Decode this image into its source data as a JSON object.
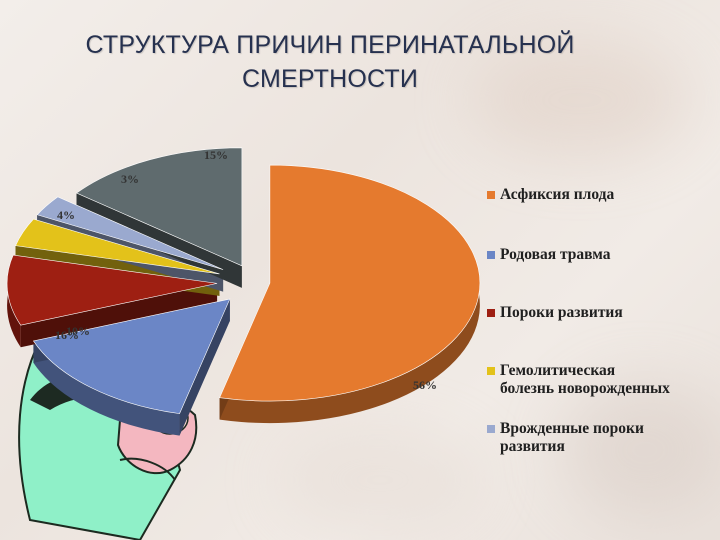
{
  "page": {
    "title": "СТРУКТУРА ПРИЧИН ПЕРИНАТАЛЬНОЙ СМЕРТНОСТИ"
  },
  "chart_data": {
    "type": "pie",
    "title": "СТРУКТУРА ПРИЧИН ПЕРИНАТАЛЬНОЙ СМЕРТНОСТИ",
    "legend_position": "right",
    "unit": "%",
    "labels": [
      "56%",
      "16%",
      "10%",
      "4%",
      "3%",
      "15%"
    ],
    "series": [
      {
        "name": "Асфиксия плода",
        "value": 56,
        "color": "#e57a2e"
      },
      {
        "name": "Родовая травма",
        "value": 16,
        "color": "#6b86c6"
      },
      {
        "name": "Пороки развития",
        "value": 10,
        "color": "#9e1f12"
      },
      {
        "name": "Гемолитическая болезнь новорожденных",
        "value": 4,
        "color": "#e3c21a"
      },
      {
        "name": "Врожденные пороки развития",
        "value": 3,
        "color": "#9aa9cf"
      },
      {
        "name": "",
        "value": 15,
        "color": "#5f6b6e"
      }
    ]
  }
}
